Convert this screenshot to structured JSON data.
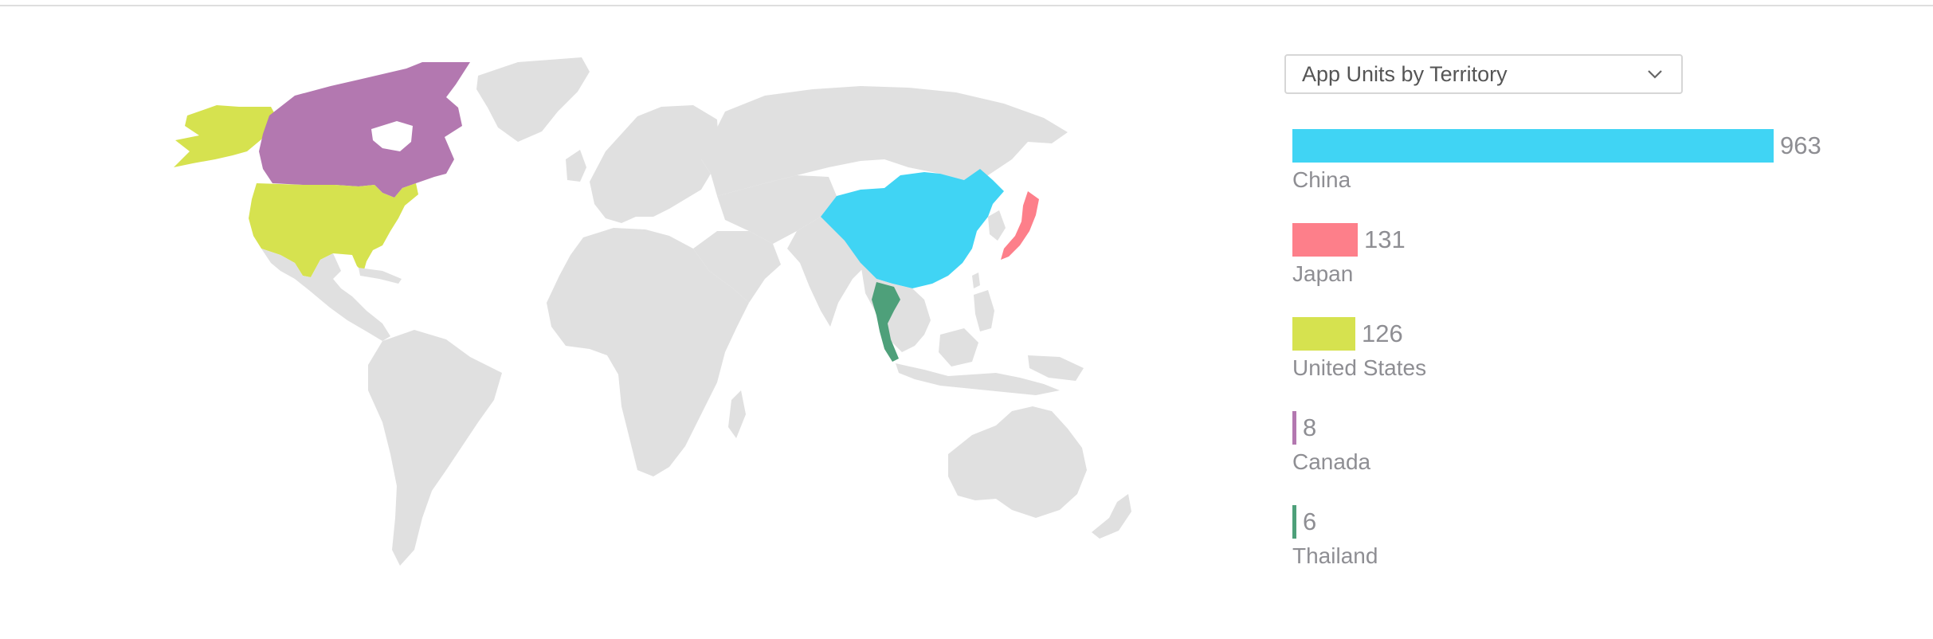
{
  "selector": {
    "label": "App Units by Territory"
  },
  "colors": {
    "China": "#40d4f4",
    "Japan": "#fd7f8a",
    "United States": "#d6e24f",
    "Canada": "#b378b0",
    "Thailand": "#4ea07a",
    "land": "#e0e0e0"
  },
  "chart_data": {
    "type": "bar",
    "orientation": "horizontal",
    "categories": [
      "China",
      "Japan",
      "United States",
      "Canada",
      "Thailand"
    ],
    "values": [
      963,
      131,
      126,
      8,
      6
    ],
    "title": "App Units by Territory",
    "xlabel": "",
    "ylabel": "",
    "xlim": [
      0,
      963
    ],
    "grid": false,
    "legend": "none"
  },
  "map": {
    "highlighted_territories": [
      "China",
      "Japan",
      "United States",
      "Canada",
      "Thailand"
    ]
  }
}
